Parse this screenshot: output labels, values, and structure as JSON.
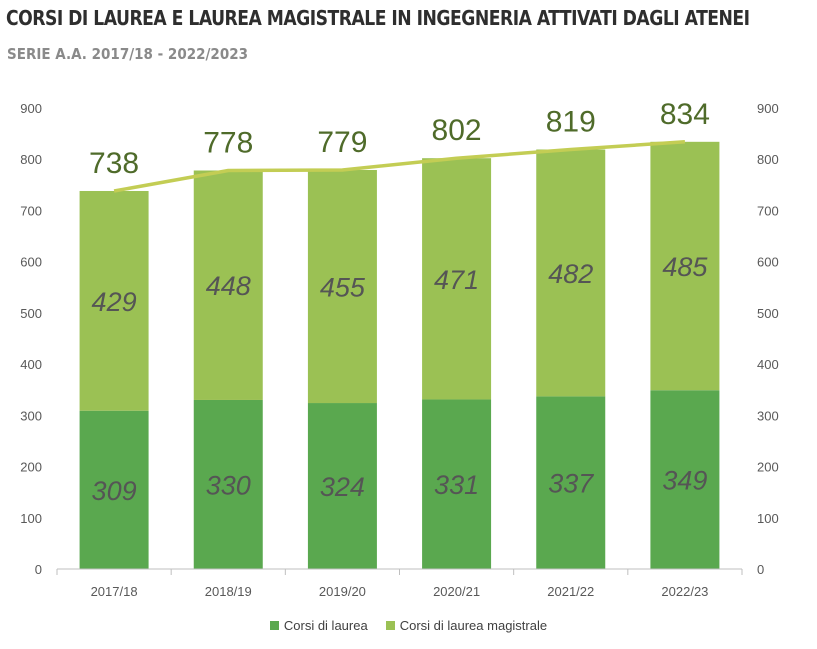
{
  "title": "CORSI DI LAUREA E LAUREA MAGISTRALE IN INGEGNERIA ATTIVATI DAGLI ATENEI",
  "subtitle": "SERIE A.A. 2017/18 - 2022/2023",
  "colors": {
    "laurea": "#5aa84f",
    "magistrale": "#9bc154",
    "total_line": "#c3cd54",
    "axis": "#bfbfbf"
  },
  "chart_data": {
    "type": "bar",
    "stacked": true,
    "categories": [
      "2017/18",
      "2018/19",
      "2019/20",
      "2020/21",
      "2021/22",
      "2022/23"
    ],
    "series": [
      {
        "name": "Corsi di laurea",
        "values": [
          309,
          330,
          324,
          331,
          337,
          349
        ]
      },
      {
        "name": "Corsi di laurea magistrale",
        "values": [
          429,
          448,
          455,
          471,
          482,
          485
        ]
      }
    ],
    "totals": [
      738,
      778,
      779,
      802,
      819,
      834
    ],
    "ylim": [
      0,
      900
    ],
    "yticks": [
      0,
      100,
      200,
      300,
      400,
      500,
      600,
      700,
      800,
      900
    ],
    "secondary_axis": true,
    "legend_position": "bottom",
    "grid": false
  }
}
